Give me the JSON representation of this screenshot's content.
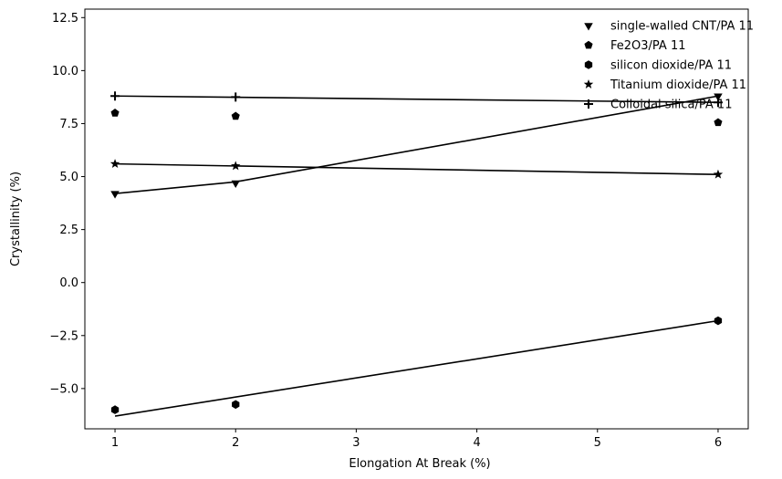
{
  "chart_data": {
    "type": "scatter",
    "title": "",
    "xlabel": "Elongation At Break (%)",
    "ylabel": "Crystallinity (%)",
    "xlim": [
      0.75,
      6.25
    ],
    "ylim": [
      -6.9,
      12.9
    ],
    "xticks": [
      1,
      2,
      3,
      4,
      5,
      6
    ],
    "yticks": [
      -5.0,
      -2.5,
      0.0,
      2.5,
      5.0,
      7.5,
      10.0,
      12.5
    ],
    "ytick_labels": [
      "−5.0",
      "−2.5",
      "0.0",
      "2.5",
      "5.0",
      "7.5",
      "10.0",
      "12.5"
    ],
    "grid": false,
    "legend_position": "upper right",
    "series": [
      {
        "name": "single-walled CNT/PA 11",
        "marker": "triangle-down",
        "x": [
          1,
          2,
          6
        ],
        "y": [
          4.2,
          4.7,
          8.8
        ],
        "fit": [
          [
            1,
            4.2
          ],
          [
            2,
            4.75
          ],
          [
            6,
            8.8
          ]
        ]
      },
      {
        "name": "Fe2O3/PA 11",
        "marker": "pentagon",
        "x": [
          1,
          2,
          6
        ],
        "y": [
          8.0,
          7.85,
          7.55
        ],
        "fit": []
      },
      {
        "name": "silicon dioxide/PA 11",
        "marker": "hexagon",
        "x": [
          1,
          2,
          6
        ],
        "y": [
          -6.0,
          -5.75,
          -1.8
        ],
        "fit": [
          [
            1,
            -6.3
          ],
          [
            6,
            -1.8
          ]
        ]
      },
      {
        "name": "Titanium dioxide/PA 11",
        "marker": "star",
        "x": [
          1,
          2,
          6
        ],
        "y": [
          5.6,
          5.5,
          5.1
        ],
        "fit": [
          [
            1,
            5.6
          ],
          [
            6,
            5.1
          ]
        ]
      },
      {
        "name": "Colloidal silica/PA 11",
        "marker": "plus",
        "x": [
          1,
          2,
          6
        ],
        "y": [
          8.8,
          8.75,
          8.5
        ],
        "fit": [
          [
            1,
            8.8
          ],
          [
            6,
            8.5
          ]
        ]
      }
    ]
  }
}
